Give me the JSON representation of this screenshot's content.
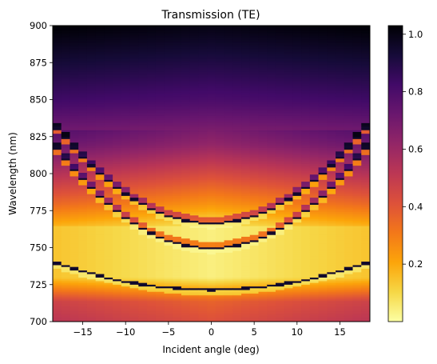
{
  "chart_data": {
    "type": "heatmap",
    "title": "Transmission (TE)",
    "xlabel": "Incident angle (deg)",
    "ylabel": "Wavelength (nm)",
    "xlim": [
      -18.5,
      18.5
    ],
    "ylim": [
      700,
      900
    ],
    "x_ticks": [
      -15,
      -10,
      -5,
      0,
      5,
      10,
      15
    ],
    "y_ticks": [
      700,
      725,
      750,
      775,
      800,
      825,
      850,
      875,
      900
    ],
    "colorbar": {
      "colormap": "inferno_r",
      "range": [
        0.0,
        1.03
      ],
      "ticks": [
        0.2,
        0.4,
        0.6,
        0.8,
        1.0
      ]
    },
    "angles_deg": [
      -18,
      -17,
      -16,
      -15,
      -14,
      -13,
      -12,
      -11,
      -10,
      -9,
      -8,
      -7,
      -6,
      -5,
      -4,
      -3,
      -2,
      -1,
      0,
      1,
      2,
      3,
      4,
      5,
      6,
      7,
      8,
      9,
      10,
      11,
      12,
      13,
      14,
      15,
      16,
      17,
      18
    ],
    "features": [
      {
        "name": "lower dip",
        "wavelength_at_0deg_nm": 721,
        "wavelength_at_18deg_nm": 739
      },
      {
        "name": "middle dip",
        "wavelength_at_0deg_nm": 749,
        "wavelength_at_18deg_nm": 816
      },
      {
        "name": "upper dip",
        "wavelength_at_0deg_nm": 766,
        "wavelength_at_18deg_nm": 830
      }
    ],
    "regions": [
      {
        "wavelength_nm": [
          700,
          715
        ],
        "transmission_approx": 0.4
      },
      {
        "wavelength_nm": [
          730,
          765
        ],
        "transmission_approx": 0.05
      },
      {
        "wavelength_nm": [
          790,
          810
        ],
        "transmission_approx": 0.35
      },
      {
        "wavelength_nm": [
          850,
          900
        ],
        "transmission_approx": 0.85
      }
    ]
  }
}
